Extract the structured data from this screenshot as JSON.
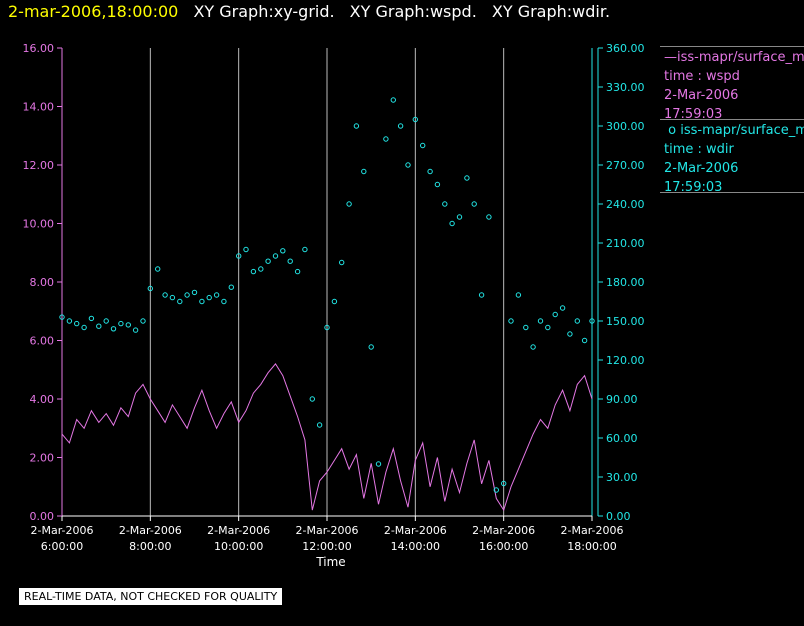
{
  "header": {
    "timestamp": "2-mar-2006,18:00:00",
    "graphs": [
      "XY Graph:xy-grid.",
      "XY Graph:wspd.",
      "XY Graph:wdir."
    ]
  },
  "legend": [
    {
      "line1": "iss-mapr/surface_m",
      "line2": "time : wspd",
      "line3": "2-Mar-2006",
      "line4": "17:59:03",
      "color": "#e477e4",
      "marker": "line"
    },
    {
      "line1": "iss-mapr/surface_m",
      "line2": "time : wdir",
      "line3": "2-Mar-2006",
      "line4": "17:59:03",
      "color": "#22e6e6",
      "marker": "circle"
    }
  ],
  "note": "REAL-TIME DATA, NOT CHECKED FOR QUALITY",
  "chart_data": {
    "type": "line",
    "xlabel": "Time",
    "x_ticks": [
      {
        "date": "2-Mar-2006",
        "time": "6:00:00"
      },
      {
        "date": "2-Mar-2006",
        "time": "8:00:00"
      },
      {
        "date": "2-Mar-2006",
        "time": "10:00:00"
      },
      {
        "date": "2-Mar-2006",
        "time": "12:00:00"
      },
      {
        "date": "2-Mar-2006",
        "time": "14:00:00"
      },
      {
        "date": "2-Mar-2006",
        "time": "16:00:00"
      },
      {
        "date": "2-Mar-2006",
        "time": "18:00:00"
      }
    ],
    "xlim": [
      "2-Mar-2006 6:00:00",
      "2-Mar-2006 18:00:00"
    ],
    "left_axis": {
      "ylim": [
        0,
        16
      ],
      "ticks": [
        "0.00",
        "2.00",
        "4.00",
        "6.00",
        "8.00",
        "10.00",
        "12.00",
        "14.00",
        "16.00"
      ],
      "color": "#e477e4"
    },
    "right_axis": {
      "ylim": [
        0,
        360
      ],
      "ticks": [
        "0.00",
        "30.00",
        "60.00",
        "90.00",
        "120.00",
        "150.00",
        "180.00",
        "210.00",
        "240.00",
        "270.00",
        "300.00",
        "330.00",
        "360.00"
      ],
      "color": "#22e6e6"
    },
    "grid": "vertical",
    "series": [
      {
        "axis": "left",
        "style": "line",
        "color": "#e477e4",
        "points": [
          [
            "6:00",
            2.8
          ],
          [
            "6:10",
            2.5
          ],
          [
            "6:20",
            3.3
          ],
          [
            "6:30",
            3.0
          ],
          [
            "6:40",
            3.6
          ],
          [
            "6:50",
            3.2
          ],
          [
            "7:00",
            3.5
          ],
          [
            "7:10",
            3.1
          ],
          [
            "7:20",
            3.7
          ],
          [
            "7:30",
            3.4
          ],
          [
            "7:40",
            4.2
          ],
          [
            "7:50",
            4.5
          ],
          [
            "8:00",
            4.0
          ],
          [
            "8:10",
            3.6
          ],
          [
            "8:20",
            3.2
          ],
          [
            "8:30",
            3.8
          ],
          [
            "8:40",
            3.4
          ],
          [
            "8:50",
            3.0
          ],
          [
            "9:00",
            3.7
          ],
          [
            "9:10",
            4.3
          ],
          [
            "9:20",
            3.6
          ],
          [
            "9:30",
            3.0
          ],
          [
            "9:40",
            3.5
          ],
          [
            "9:50",
            3.9
          ],
          [
            "10:00",
            3.2
          ],
          [
            "10:10",
            3.6
          ],
          [
            "10:20",
            4.2
          ],
          [
            "10:30",
            4.5
          ],
          [
            "10:40",
            4.9
          ],
          [
            "10:50",
            5.2
          ],
          [
            "11:00",
            4.8
          ],
          [
            "11:10",
            4.1
          ],
          [
            "11:20",
            3.4
          ],
          [
            "11:30",
            2.6
          ],
          [
            "11:40",
            0.2
          ],
          [
            "11:50",
            1.2
          ],
          [
            "12:00",
            1.5
          ],
          [
            "12:10",
            1.9
          ],
          [
            "12:20",
            2.3
          ],
          [
            "12:30",
            1.6
          ],
          [
            "12:40",
            2.1
          ],
          [
            "12:50",
            0.6
          ],
          [
            "13:00",
            1.8
          ],
          [
            "13:10",
            0.4
          ],
          [
            "13:20",
            1.5
          ],
          [
            "13:30",
            2.3
          ],
          [
            "13:40",
            1.2
          ],
          [
            "13:50",
            0.3
          ],
          [
            "14:00",
            1.9
          ],
          [
            "14:10",
            2.5
          ],
          [
            "14:20",
            1.0
          ],
          [
            "14:30",
            2.0
          ],
          [
            "14:40",
            0.5
          ],
          [
            "14:50",
            1.6
          ],
          [
            "15:00",
            0.8
          ],
          [
            "15:10",
            1.8
          ],
          [
            "15:20",
            2.6
          ],
          [
            "15:30",
            1.1
          ],
          [
            "15:40",
            1.9
          ],
          [
            "15:50",
            0.6
          ],
          [
            "16:00",
            0.2
          ],
          [
            "16:10",
            1.0
          ],
          [
            "16:20",
            1.6
          ],
          [
            "16:30",
            2.2
          ],
          [
            "16:40",
            2.8
          ],
          [
            "16:50",
            3.3
          ],
          [
            "17:00",
            3.0
          ],
          [
            "17:10",
            3.8
          ],
          [
            "17:20",
            4.3
          ],
          [
            "17:30",
            3.6
          ],
          [
            "17:40",
            4.5
          ],
          [
            "17:50",
            4.8
          ],
          [
            "18:00",
            4.0
          ]
        ]
      },
      {
        "axis": "right",
        "style": "scatter",
        "color": "#22e6e6",
        "points": [
          [
            "6:00",
            153
          ],
          [
            "6:10",
            150
          ],
          [
            "6:20",
            148
          ],
          [
            "6:30",
            145
          ],
          [
            "6:40",
            152
          ],
          [
            "6:50",
            146
          ],
          [
            "7:00",
            150
          ],
          [
            "7:10",
            144
          ],
          [
            "7:20",
            148
          ],
          [
            "7:30",
            147
          ],
          [
            "7:40",
            143
          ],
          [
            "7:50",
            150
          ],
          [
            "8:00",
            175
          ],
          [
            "8:10",
            190
          ],
          [
            "8:20",
            170
          ],
          [
            "8:30",
            168
          ],
          [
            "8:40",
            165
          ],
          [
            "8:50",
            170
          ],
          [
            "9:00",
            172
          ],
          [
            "9:10",
            165
          ],
          [
            "9:20",
            168
          ],
          [
            "9:30",
            170
          ],
          [
            "9:40",
            165
          ],
          [
            "9:50",
            176
          ],
          [
            "10:00",
            200
          ],
          [
            "10:10",
            205
          ],
          [
            "10:20",
            188
          ],
          [
            "10:30",
            190
          ],
          [
            "10:40",
            196
          ],
          [
            "10:50",
            200
          ],
          [
            "11:00",
            204
          ],
          [
            "11:10",
            196
          ],
          [
            "11:20",
            188
          ],
          [
            "11:30",
            205
          ],
          [
            "11:40",
            90
          ],
          [
            "11:50",
            70
          ],
          [
            "12:00",
            145
          ],
          [
            "12:10",
            165
          ],
          [
            "12:20",
            195
          ],
          [
            "12:30",
            240
          ],
          [
            "12:40",
            300
          ],
          [
            "12:50",
            265
          ],
          [
            "13:00",
            130
          ],
          [
            "13:10",
            40
          ],
          [
            "13:20",
            290
          ],
          [
            "13:30",
            320
          ],
          [
            "13:40",
            300
          ],
          [
            "13:50",
            270
          ],
          [
            "14:00",
            305
          ],
          [
            "14:10",
            285
          ],
          [
            "14:20",
            265
          ],
          [
            "14:30",
            255
          ],
          [
            "14:40",
            240
          ],
          [
            "14:50",
            225
          ],
          [
            "15:00",
            230
          ],
          [
            "15:10",
            260
          ],
          [
            "15:20",
            240
          ],
          [
            "15:30",
            170
          ],
          [
            "15:40",
            230
          ],
          [
            "15:50",
            20
          ],
          [
            "16:00",
            25
          ],
          [
            "16:10",
            150
          ],
          [
            "16:20",
            170
          ],
          [
            "16:30",
            145
          ],
          [
            "16:40",
            130
          ],
          [
            "16:50",
            150
          ],
          [
            "17:00",
            145
          ],
          [
            "17:10",
            155
          ],
          [
            "17:20",
            160
          ],
          [
            "17:30",
            140
          ],
          [
            "17:40",
            150
          ],
          [
            "17:50",
            135
          ],
          [
            "18:00",
            150
          ]
        ]
      }
    ]
  }
}
